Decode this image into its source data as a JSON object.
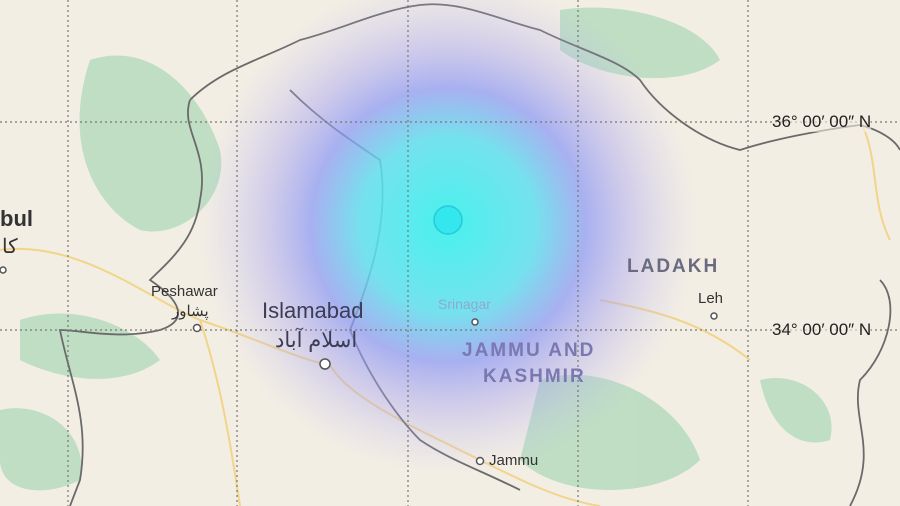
{
  "map": {
    "epicenter_color": "#34e6ee",
    "intensity_colors": [
      "#3cf0ee",
      "#7fb8f0",
      "#9a8cf2"
    ],
    "grid_latitudes": [
      "36° 00′ 00″ N",
      "34° 00′ 00″ N"
    ],
    "labels": {
      "kabul": "bul",
      "kabul_native": "کا",
      "peshawar": "Peshawar",
      "peshawar_native": "پشاور",
      "islamabad": "Islamabad",
      "islamabad_native": "اسلام آباد",
      "srinagar": "Srinagar",
      "ladakh": "LADAKH",
      "leh": "Leh",
      "jammu_kashmir_1": "JAMMU AND",
      "jammu_kashmir_2": "KASHMIR",
      "jammu": "Jammu"
    }
  }
}
